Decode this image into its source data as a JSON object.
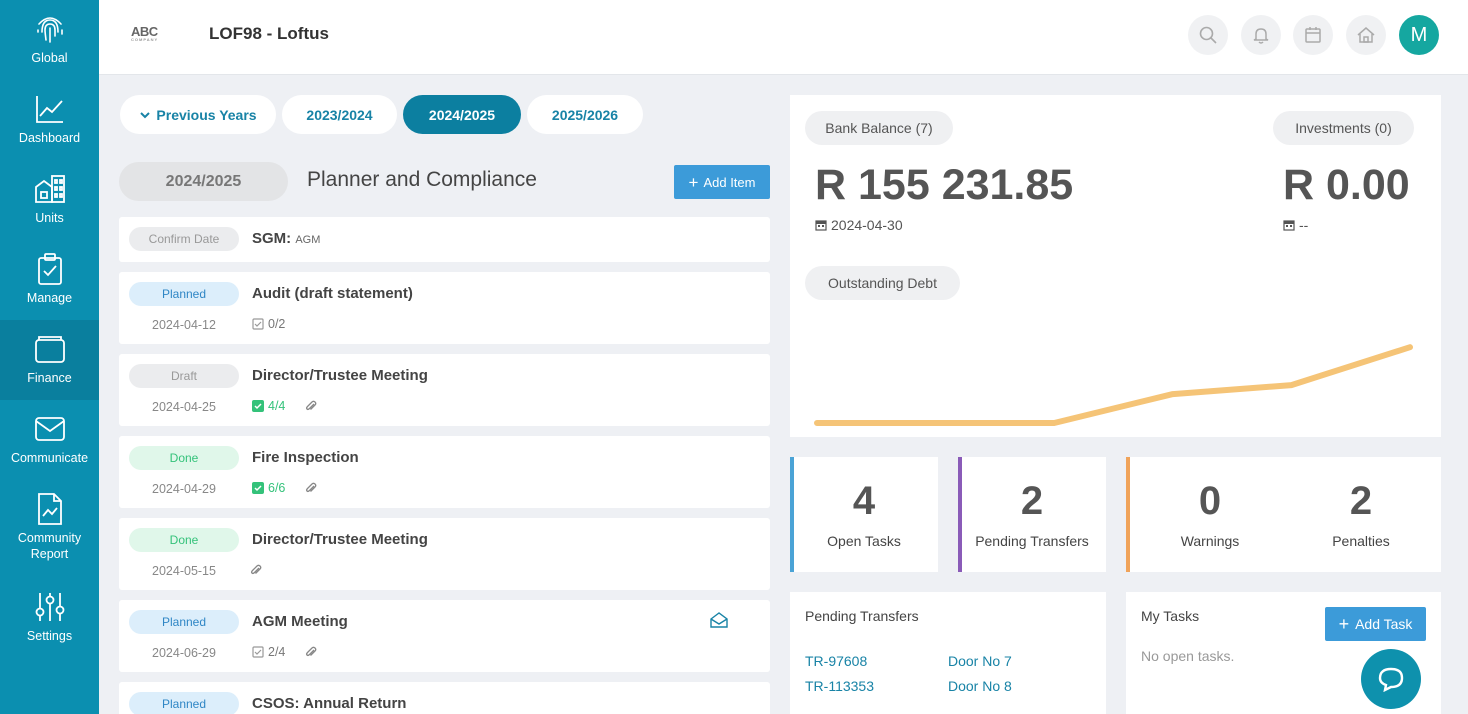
{
  "sidebar": {
    "items": [
      {
        "label": "Global",
        "icon": "fingerprint-icon"
      },
      {
        "label": "Dashboard",
        "icon": "line-chart-icon"
      },
      {
        "label": "Units",
        "icon": "buildings-icon"
      },
      {
        "label": "Manage",
        "icon": "clipboard-check-icon"
      },
      {
        "label": "Finance",
        "icon": "wallet-icon"
      },
      {
        "label": "Communicate",
        "icon": "envelope-icon"
      },
      {
        "label": "Community\nReport",
        "icon": "report-icon"
      },
      {
        "label": "Settings",
        "icon": "sliders-icon"
      }
    ]
  },
  "header": {
    "logo_text": "ABC",
    "logo_sub": "COMPANY",
    "title": "LOF98 - Loftus",
    "avatar_initial": "M"
  },
  "years": {
    "previous": "Previous Years",
    "tabs": [
      "2023/2024",
      "2024/2025",
      "2025/2026"
    ],
    "active": "2024/2025"
  },
  "planner": {
    "year_tag": "2024/2025",
    "title": "Planner and Compliance",
    "add_label": "Add Item",
    "items": [
      {
        "status": "Confirm Date",
        "title": "SGM:",
        "title_suffix": "AGM",
        "date": "",
        "tasks": "",
        "attachment": false
      },
      {
        "status": "Planned",
        "title": "Audit (draft statement)",
        "date": "2024-04-12",
        "tasks": "0/2",
        "attachment": false
      },
      {
        "status": "Draft",
        "title": "Director/Trustee Meeting",
        "date": "2024-04-25",
        "tasks": "4/4",
        "attachment": true
      },
      {
        "status": "Done",
        "title": "Fire Inspection",
        "date": "2024-04-29",
        "tasks": "6/6",
        "attachment": true
      },
      {
        "status": "Done",
        "title": "Director/Trustee Meeting",
        "date": "2024-05-15",
        "tasks": "",
        "attachment": true
      },
      {
        "status": "Planned",
        "title": "AGM Meeting",
        "date": "2024-06-29",
        "tasks": "2/4",
        "attachment": true
      },
      {
        "status": "Planned",
        "title": "CSOS: Annual Return",
        "date": "",
        "tasks": "",
        "attachment": false
      }
    ]
  },
  "balances": {
    "bank_label": "Bank Balance (7)",
    "bank_amount": "R 155 231.85",
    "bank_date": "2024-04-30",
    "investments_label": "Investments (0)",
    "investments_amount": "R 0.00",
    "investments_date": "--",
    "debt_label": "Outstanding Debt"
  },
  "chart_data": {
    "type": "line",
    "title": "",
    "xlabel": "",
    "ylabel": "",
    "x": [
      0,
      1,
      2,
      3,
      4,
      5
    ],
    "series": [
      {
        "values": [
          0,
          0,
          0,
          29,
          38,
          76
        ]
      }
    ],
    "ylim": [
      0,
      100
    ],
    "grid": false,
    "color": "#f5c477"
  },
  "stats": [
    {
      "value": "4",
      "label": "Open Tasks",
      "color": "#4aa3d6"
    },
    {
      "value": "2",
      "label": "Pending Transfers",
      "color": "#8a5bb8"
    },
    {
      "value": "0",
      "label": "Warnings",
      "color": "#f0a35a"
    },
    {
      "value": "2",
      "label": "Penalties",
      "color": ""
    }
  ],
  "pending_transfers": {
    "title": "Pending Transfers",
    "rows": [
      {
        "id": "TR-97608",
        "door": "Door No 7"
      },
      {
        "id": "TR-113353",
        "door": "Door No 8"
      }
    ]
  },
  "my_tasks": {
    "title": "My Tasks",
    "add_label": "Add Task",
    "empty": "No open tasks."
  }
}
